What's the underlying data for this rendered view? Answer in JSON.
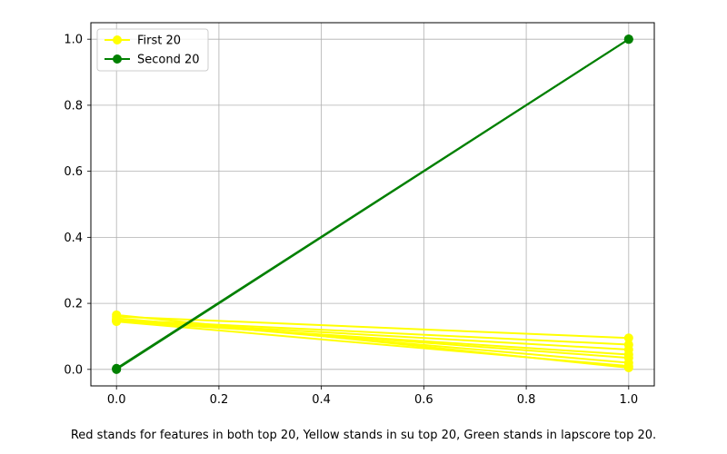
{
  "chart_data": {
    "type": "line",
    "title": "",
    "xlabel": "",
    "ylabel": "",
    "xlim": [
      -0.05,
      1.05
    ],
    "ylim": [
      -0.05,
      1.05
    ],
    "xticks": [
      0.0,
      0.2,
      0.4,
      0.6,
      0.8,
      1.0
    ],
    "yticks": [
      0.0,
      0.2,
      0.4,
      0.6,
      0.8,
      1.0
    ],
    "xtick_labels": [
      "0.0",
      "0.2",
      "0.4",
      "0.6",
      "0.8",
      "1.0"
    ],
    "ytick_labels": [
      "0.0",
      "0.2",
      "0.4",
      "0.6",
      "0.8",
      "1.0"
    ],
    "grid": true,
    "legend_position": "top-left",
    "series": [
      {
        "name": "First 20",
        "color": "#ffff00",
        "marker": "circle",
        "lines": [
          [
            [
              0,
              0.165
            ],
            [
              1,
              0.005
            ]
          ],
          [
            [
              0,
              0.16
            ],
            [
              1,
              0.095
            ]
          ],
          [
            [
              0,
              0.155
            ],
            [
              1,
              0.02
            ]
          ],
          [
            [
              0,
              0.15
            ],
            [
              1,
              0.075
            ]
          ],
          [
            [
              0,
              0.15
            ],
            [
              1,
              0.035
            ]
          ],
          [
            [
              0,
              0.148
            ],
            [
              1,
              0.06
            ]
          ],
          [
            [
              0,
              0.146
            ],
            [
              1,
              0.045
            ]
          ],
          [
            [
              0,
              0.145
            ],
            [
              1,
              0.01
            ]
          ]
        ]
      },
      {
        "name": "Second 20",
        "color": "#008000",
        "marker": "circle",
        "lines": [
          [
            [
              0,
              0.0
            ],
            [
              1,
              1.0
            ]
          ],
          [
            [
              0,
              0.003
            ],
            [
              1,
              1.0
            ]
          ],
          [
            [
              0,
              0.001
            ],
            [
              1,
              1.0
            ]
          ]
        ]
      }
    ]
  },
  "caption": "Red stands for features in both top 20, Yellow stands in su top 20, Green stands in lapscore top 20."
}
